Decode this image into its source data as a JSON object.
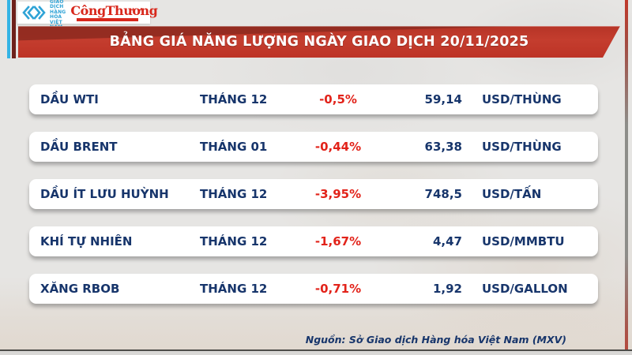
{
  "header": {
    "mxv_logo": {
      "org_lines": [
        "SỞ GIAO DỊCH",
        "HÀNG HÓA",
        "VIỆT NAM"
      ],
      "mark_color": "#2fa3d6"
    },
    "congthuong_logo": {
      "text": "CôngThương",
      "color": "#d8281c"
    }
  },
  "banner": {
    "title": "BẢNG GIÁ NĂNG LƯỢNG NGÀY GIAO DỊCH 20/11/2025"
  },
  "table": {
    "rows": [
      {
        "name": "DẦU WTI",
        "month": "THÁNG 12",
        "change": "-0,5%",
        "price": "59,14",
        "unit": "USD/THÙNG"
      },
      {
        "name": "DẦU BRENT",
        "month": "THÁNG 01",
        "change": "-0,44%",
        "price": "63,38",
        "unit": "USD/THÙNG"
      },
      {
        "name": "DẦU ÍT LƯU HUỲNH",
        "month": "THÁNG 12",
        "change": "-3,95%",
        "price": "748,5",
        "unit": "USD/TẤN"
      },
      {
        "name": "KHÍ TỰ NHIÊN",
        "month": "THÁNG 12",
        "change": "-1,67%",
        "price": "4,47",
        "unit": "USD/MMBTU"
      },
      {
        "name": "XĂNG RBOB",
        "month": "THÁNG 12",
        "change": "-0,71%",
        "price": "1,92",
        "unit": "USD/GALLON"
      }
    ]
  },
  "footer": {
    "source": "Nguồn: Sở Giao dịch Hàng hóa Việt Nam (MXV)"
  },
  "colors": {
    "banner_red": "#c43d2e",
    "banner_dark_red": "#8d2a20",
    "text_navy": "#17356b",
    "change_red": "#e2231a",
    "stripe_cyan": "#35b4e5",
    "stripe_maroon": "#6e211b",
    "row_bg": "#ffffff",
    "page_bg": "#e6e5e3"
  },
  "chart_data": {
    "type": "table",
    "title": "BẢNG GIÁ NĂNG LƯỢNG NGÀY GIAO DỊCH 20/11/2025",
    "rows": [
      {
        "commodity": "DẦU WTI",
        "contract_month": "THÁNG 12",
        "change_percent": -0.5,
        "price": 59.14,
        "unit": "USD/THÙNG"
      },
      {
        "commodity": "DẦU BRENT",
        "contract_month": "THÁNG 01",
        "change_percent": -0.44,
        "price": 63.38,
        "unit": "USD/THÙNG"
      },
      {
        "commodity": "DẦU ÍT LƯU HUỲNH",
        "contract_month": "THÁNG 12",
        "change_percent": -3.95,
        "price": 748.5,
        "unit": "USD/TẤN"
      },
      {
        "commodity": "KHÍ TỰ NHIÊN",
        "contract_month": "THÁNG 12",
        "change_percent": -1.67,
        "price": 4.47,
        "unit": "USD/MMBTU"
      },
      {
        "commodity": "XĂNG RBOB",
        "contract_month": "THÁNG 12",
        "change_percent": -0.71,
        "price": 1.92,
        "unit": "USD/GALLON"
      }
    ],
    "source": "Nguồn: Sở Giao dịch Hàng hóa Việt Nam (MXV)"
  }
}
